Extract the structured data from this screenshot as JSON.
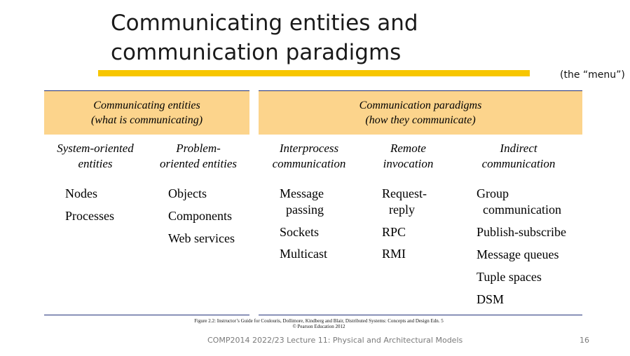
{
  "slide": {
    "title_line1": "Communicating entities and",
    "title_line2": "communication paradigms",
    "menu_note": "(the “menu”)",
    "accent_color": "#f7c600",
    "header_fill_color": "#fcd48c"
  },
  "figure": {
    "entities": {
      "header_line1": "Communicating entities",
      "header_line2": "(what is communicating)",
      "columns": [
        {
          "head_line1": "System-oriented",
          "head_line2": "entities",
          "items": [
            "Nodes",
            "Processes"
          ]
        },
        {
          "head_line1": "Problem-",
          "head_line2": "oriented entities",
          "items": [
            "Objects",
            "Components",
            "Web services"
          ]
        }
      ]
    },
    "paradigms": {
      "header_line1": "Communication paradigms",
      "header_line2": "(how they communicate)",
      "columns": [
        {
          "head_line1": "Interprocess",
          "head_line2": "communication",
          "items": [
            "Message",
            "passing",
            "Sockets",
            "Multicast"
          ]
        },
        {
          "head_line1": "Remote",
          "head_line2": "invocation",
          "items": [
            "Request-",
            "reply",
            "RPC",
            "RMI"
          ]
        },
        {
          "head_line1": "Indirect",
          "head_line2": "communication",
          "items": [
            "Group",
            "communication",
            "Publish-subscribe",
            "Message queues",
            "Tuple spaces",
            "DSM"
          ]
        }
      ]
    },
    "caption_line1": "Figure 2.2: Instructor’s Guide for  Coulouris, Dollimore, Kindberg and Blair,  Distributed Systems: Concepts and Design   Edn. 5",
    "caption_line2": "©  Pearson Education 2012"
  },
  "footer": {
    "text": "COMP2014 2022/23 Lecture 11: Physical and Architectural Models",
    "page_number": "16"
  }
}
